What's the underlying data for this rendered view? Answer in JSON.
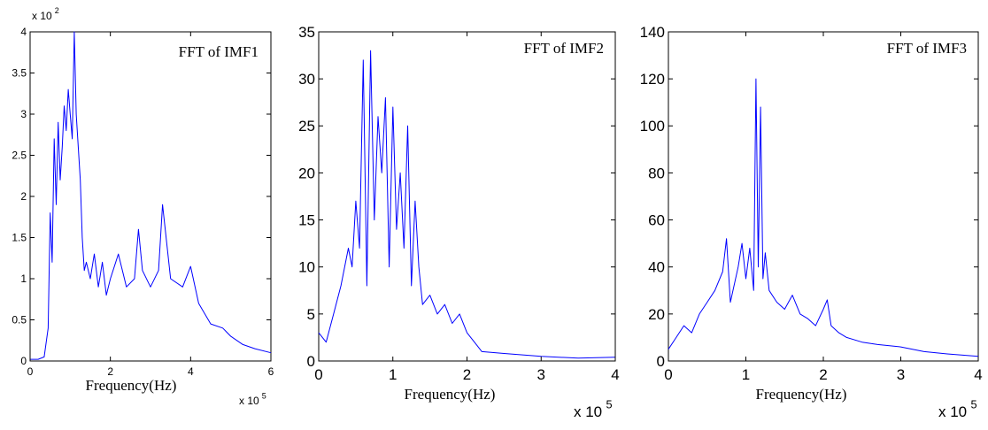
{
  "chart_data": [
    {
      "type": "line",
      "title": "FFT of IMF1",
      "xlabel": "Frequency(Hz)",
      "ylabel": "",
      "x_scale_label": "x 10",
      "x_scale_exp": "5",
      "y_scale_label": "x 10",
      "y_scale_exp": "2",
      "xlim": [
        0,
        6
      ],
      "ylim": [
        0,
        4
      ],
      "xticks": [
        "0",
        "2",
        "4",
        "6"
      ],
      "yticks": [
        "0",
        "0.5",
        "1",
        "1.5",
        "2",
        "2.5",
        "3",
        "3.5",
        "4"
      ],
      "legend": "none",
      "grid": false,
      "line_color": "#0000ff",
      "series": [
        {
          "x": [
            0,
            0.2,
            0.35,
            0.45,
            0.5,
            0.55,
            0.6,
            0.65,
            0.7,
            0.75,
            0.8,
            0.85,
            0.9,
            0.95,
            1.0,
            1.05,
            1.1,
            1.15,
            1.2,
            1.25,
            1.3,
            1.35,
            1.4,
            1.5,
            1.6,
            1.7,
            1.8,
            1.9,
            2.0,
            2.2,
            2.4,
            2.6,
            2.7,
            2.8,
            3.0,
            3.2,
            3.3,
            3.5,
            3.8,
            4.0,
            4.2,
            4.5,
            4.8,
            5.0,
            5.3,
            5.6,
            6.0
          ],
          "y": [
            0.02,
            0.02,
            0.05,
            0.4,
            1.8,
            1.2,
            2.7,
            1.9,
            2.9,
            2.2,
            2.6,
            3.1,
            2.8,
            3.3,
            3.0,
            2.7,
            4.0,
            3.0,
            2.6,
            2.2,
            1.5,
            1.1,
            1.2,
            1.0,
            1.3,
            0.9,
            1.2,
            0.8,
            1.0,
            1.3,
            0.9,
            1.0,
            1.6,
            1.1,
            0.9,
            1.1,
            1.9,
            1.0,
            0.9,
            1.15,
            0.7,
            0.45,
            0.4,
            0.3,
            0.2,
            0.15,
            0.1
          ]
        }
      ]
    },
    {
      "type": "line",
      "title": "FFT of IMF2",
      "xlabel": "Frequency(Hz)",
      "ylabel": "",
      "x_scale_label": "x 10",
      "x_scale_exp": "5",
      "xlim": [
        0,
        4
      ],
      "ylim": [
        0,
        35
      ],
      "xticks": [
        "0",
        "1",
        "2",
        "3",
        "4"
      ],
      "yticks": [
        "0",
        "5",
        "10",
        "15",
        "20",
        "25",
        "30",
        "35"
      ],
      "legend": "none",
      "grid": false,
      "line_color": "#0000ff",
      "series": [
        {
          "x": [
            0,
            0.1,
            0.2,
            0.3,
            0.4,
            0.45,
            0.5,
            0.55,
            0.6,
            0.65,
            0.7,
            0.75,
            0.8,
            0.85,
            0.9,
            0.95,
            1.0,
            1.05,
            1.1,
            1.15,
            1.2,
            1.25,
            1.3,
            1.35,
            1.4,
            1.5,
            1.6,
            1.7,
            1.8,
            1.9,
            2.0,
            2.1,
            2.2,
            2.5,
            3.0,
            3.5,
            4.0
          ],
          "y": [
            3,
            2,
            5,
            8,
            12,
            10,
            17,
            12,
            32,
            8,
            33,
            15,
            26,
            20,
            28,
            10,
            27,
            14,
            20,
            12,
            25,
            8,
            17,
            10,
            6,
            7,
            5,
            6,
            4,
            5,
            3,
            2,
            1,
            0.8,
            0.5,
            0.3,
            0.4
          ]
        }
      ]
    },
    {
      "type": "line",
      "title": "FFT of IMF3",
      "xlabel": "Frequency(Hz)",
      "ylabel": "",
      "x_scale_label": "x 10",
      "x_scale_exp": "5",
      "xlim": [
        0,
        4
      ],
      "ylim": [
        0,
        140
      ],
      "xticks": [
        "0",
        "1",
        "2",
        "3",
        "4"
      ],
      "yticks": [
        "0",
        "20",
        "40",
        "60",
        "80",
        "100",
        "120",
        "140"
      ],
      "legend": "none",
      "grid": false,
      "line_color": "#0000ff",
      "series": [
        {
          "x": [
            0,
            0.1,
            0.2,
            0.3,
            0.4,
            0.5,
            0.6,
            0.7,
            0.75,
            0.8,
            0.9,
            0.95,
            1.0,
            1.05,
            1.1,
            1.13,
            1.16,
            1.19,
            1.22,
            1.25,
            1.3,
            1.4,
            1.5,
            1.6,
            1.7,
            1.8,
            1.9,
            2.0,
            2.05,
            2.1,
            2.2,
            2.3,
            2.5,
            2.7,
            3.0,
            3.3,
            3.6,
            4.0
          ],
          "y": [
            5,
            10,
            15,
            12,
            20,
            25,
            30,
            38,
            52,
            25,
            40,
            50,
            35,
            48,
            30,
            120,
            40,
            108,
            35,
            46,
            30,
            25,
            22,
            28,
            20,
            18,
            15,
            22,
            26,
            15,
            12,
            10,
            8,
            7,
            6,
            4,
            3,
            2
          ]
        }
      ]
    }
  ]
}
